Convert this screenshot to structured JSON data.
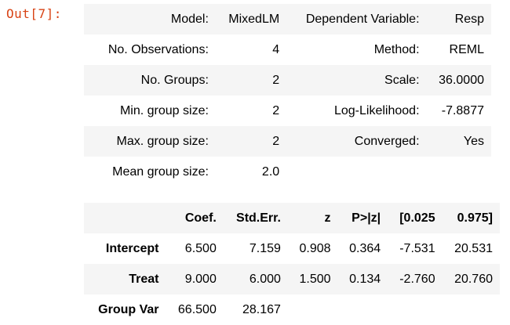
{
  "prompt": "Out[7]:",
  "summary_info": [
    [
      "Model:",
      "MixedLM",
      "Dependent Variable:",
      "Resp"
    ],
    [
      "No. Observations:",
      "4",
      "Method:",
      "REML"
    ],
    [
      "No. Groups:",
      "2",
      "Scale:",
      "36.0000"
    ],
    [
      "Min. group size:",
      "2",
      "Log-Likelihood:",
      "-7.8877"
    ],
    [
      "Max. group size:",
      "2",
      "Converged:",
      "Yes"
    ],
    [
      "Mean group size:",
      "2.0",
      "",
      ""
    ]
  ],
  "coef_table": {
    "headers": [
      "",
      "Coef.",
      "Std.Err.",
      "z",
      "P>|z|",
      "[0.025",
      "0.975]"
    ],
    "rows": [
      [
        "Intercept",
        "6.500",
        "7.159",
        "0.908",
        "0.364",
        "-7.531",
        "20.531"
      ],
      [
        "Treat",
        "9.000",
        "6.000",
        "1.500",
        "0.134",
        "-2.760",
        "20.760"
      ],
      [
        "Group Var",
        "66.500",
        "28.167",
        "",
        "",
        "",
        ""
      ]
    ]
  }
}
